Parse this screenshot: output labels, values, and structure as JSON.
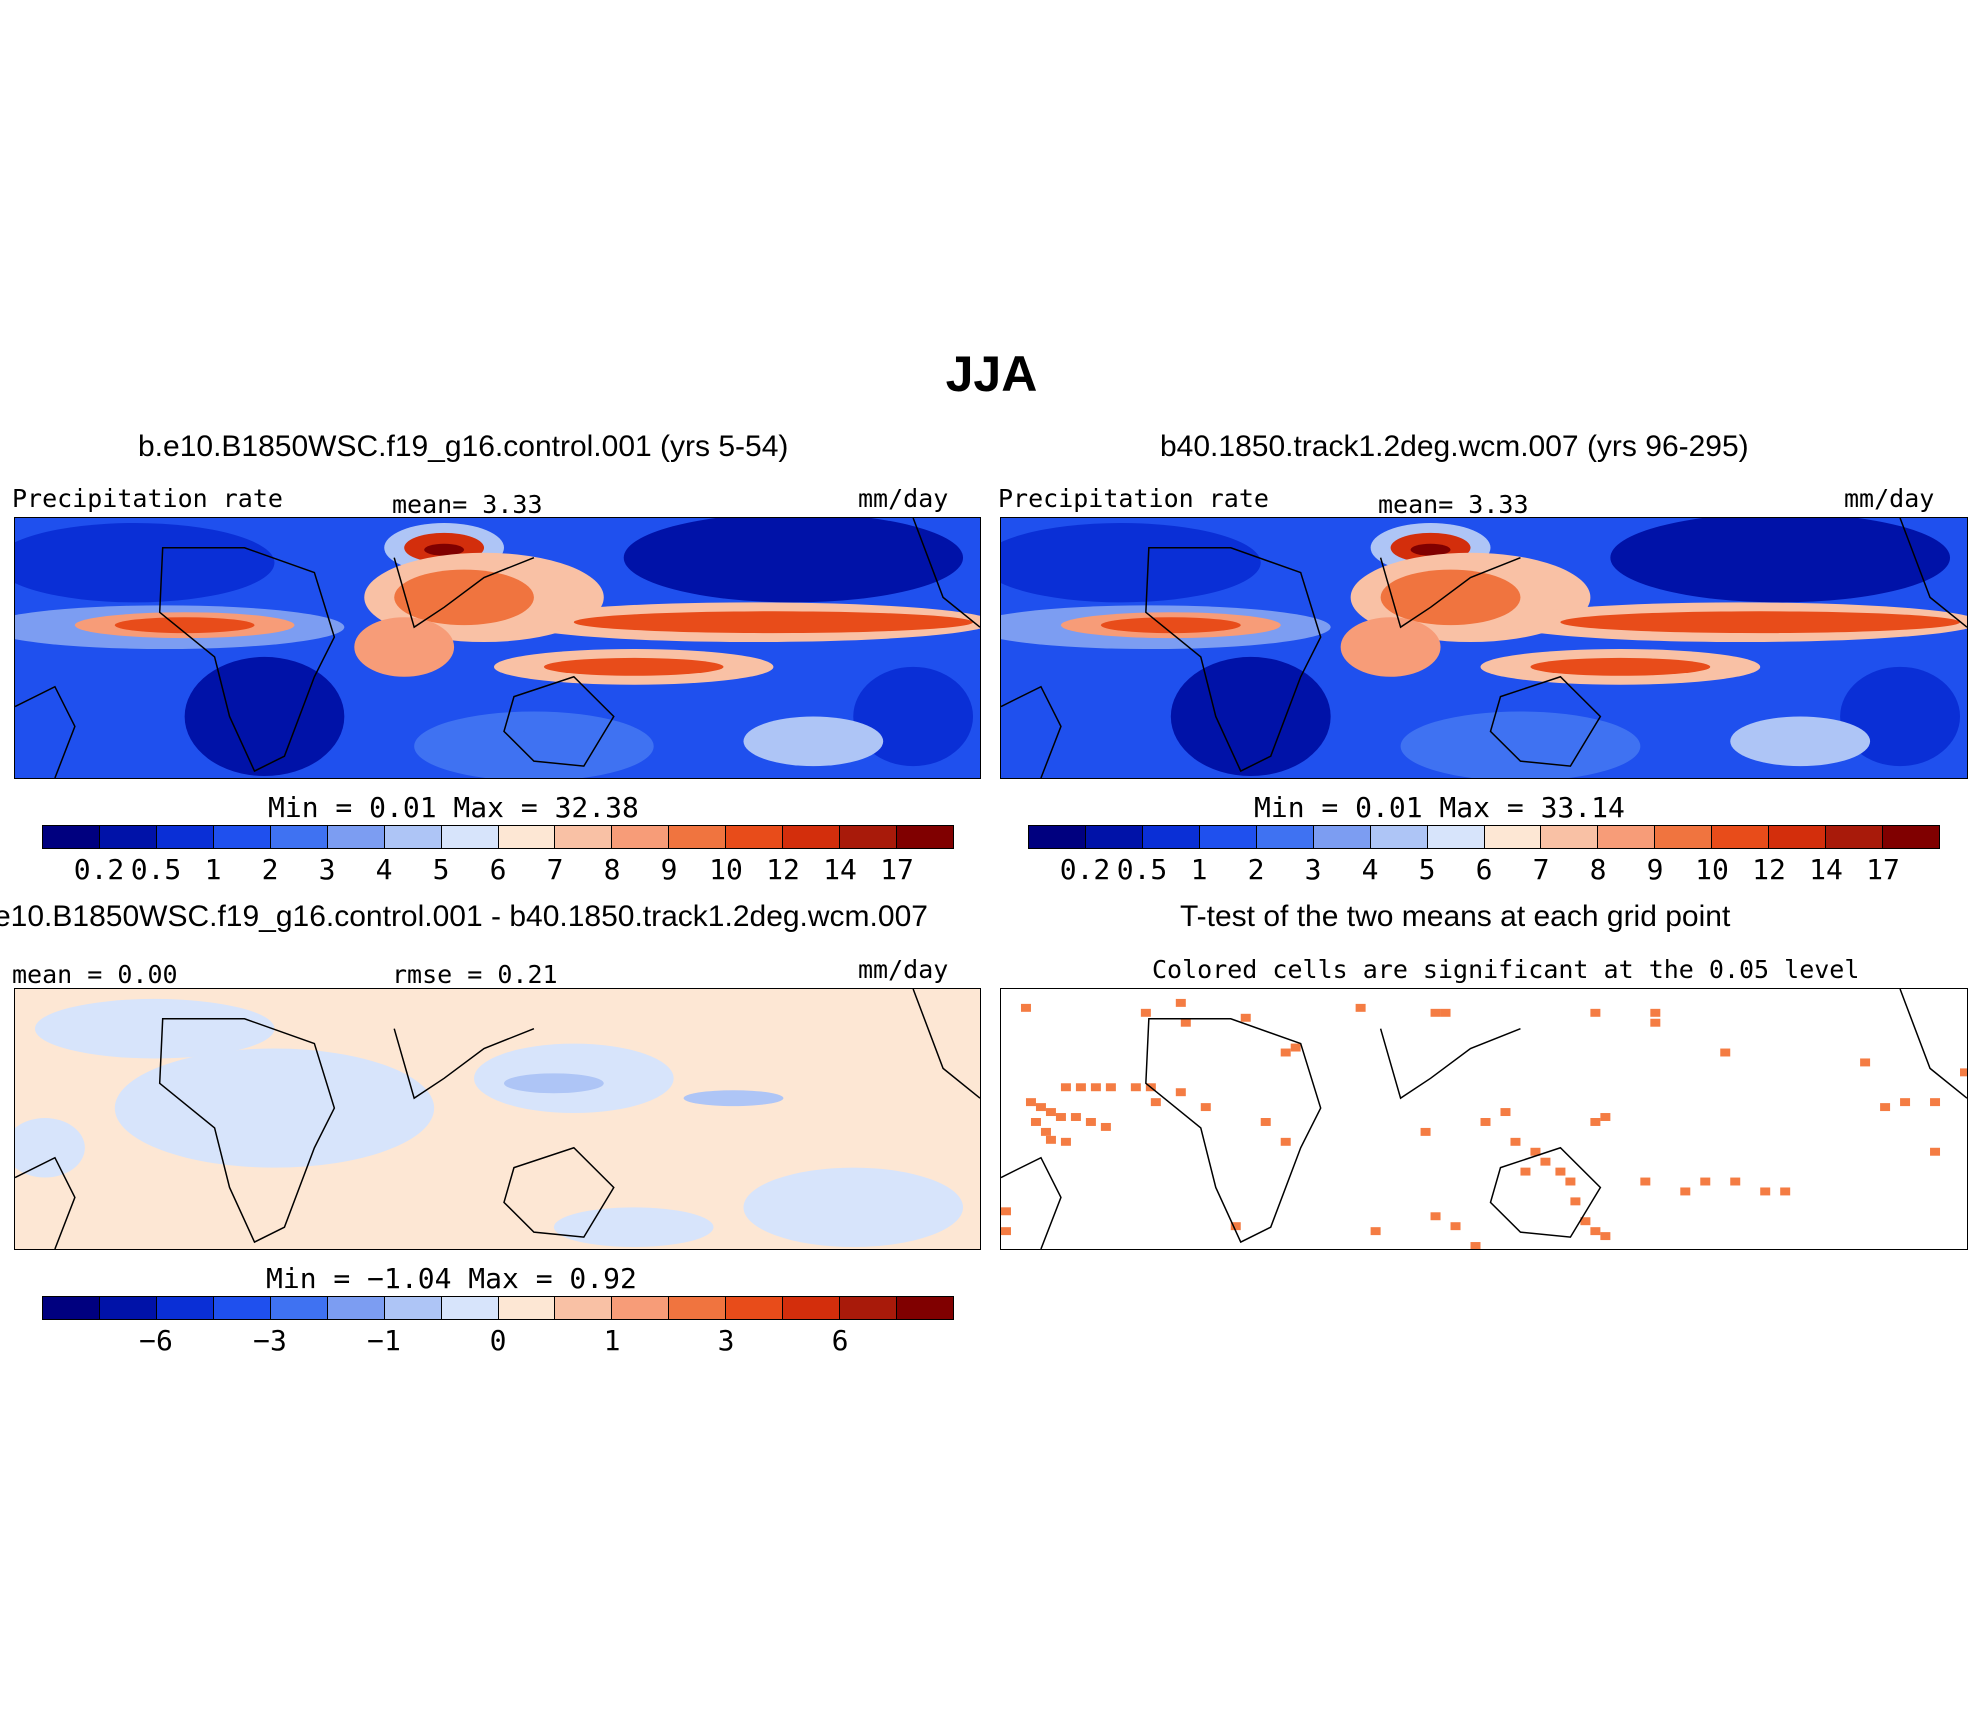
{
  "figure": {
    "title": "JJA"
  },
  "panels": {
    "p1": {
      "title": "b.e10.B1850WSC.f19_g16.control.001 (yrs 5-54)",
      "left": "Precipitation rate",
      "center": "mean=    3.33",
      "units": "mm/day",
      "minmax": "Min =    0.01  Max =   32.38"
    },
    "p2": {
      "title": "b40.1850.track1.2deg.wcm.007 (yrs 96-295)",
      "left": "Precipitation rate",
      "center": "mean=    3.33",
      "units": "mm/day",
      "minmax": "Min =    0.01  Max =   33.14"
    },
    "p3": {
      "title": "e10.B1850WSC.f19_g16.control.001 - b40.1850.track1.2deg.wcm.007",
      "left": "mean =   0.00",
      "center": "rmse =    0.21",
      "units": "mm/day",
      "minmax": "Min =  −1.04  Max =    0.92"
    },
    "p4": {
      "title": "T-test of the two means at each grid point",
      "subtitle": "Colored cells are significant at the 0.05 level"
    }
  },
  "colorbars": {
    "colors": [
      "#00007f",
      "#0012a8",
      "#0a2fd6",
      "#1f50ee",
      "#3f72f2",
      "#7c9df2",
      "#aec5f6",
      "#d7e4fb",
      "#fde7d4",
      "#f9c1a5",
      "#f79c78",
      "#f0743f",
      "#e84c1a",
      "#d32e0c",
      "#a81a0a",
      "#800000"
    ],
    "precip_ticks": [
      "0.2",
      "0.5",
      "1",
      "2",
      "3",
      "4",
      "5",
      "6",
      "7",
      "8",
      "9",
      "10",
      "12",
      "14",
      "17"
    ],
    "diff_ticks": [
      "−6",
      "−3",
      "−1",
      "0",
      "1",
      "3",
      "6"
    ]
  },
  "significance_color": "#f47c43"
}
